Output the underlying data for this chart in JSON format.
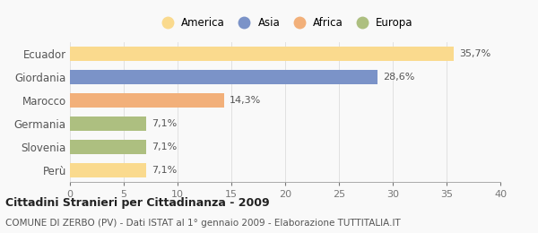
{
  "categories": [
    "Ecuador",
    "Giordania",
    "Marocco",
    "Germania",
    "Slovenia",
    "Perù"
  ],
  "values": [
    35.7,
    28.6,
    14.3,
    7.1,
    7.1,
    7.1
  ],
  "bar_colors": [
    "#FADA8E",
    "#7B93C8",
    "#F2B07A",
    "#ADBF80",
    "#ADBF80",
    "#FADA8E"
  ],
  "bar_labels": [
    "35,7%",
    "28,6%",
    "14,3%",
    "7,1%",
    "7,1%",
    "7,1%"
  ],
  "legend_labels": [
    "America",
    "Asia",
    "Africa",
    "Europa"
  ],
  "legend_colors": [
    "#FADA8E",
    "#7B93C8",
    "#F2B07A",
    "#ADBF80"
  ],
  "title_bold": "Cittadini Stranieri per Cittadinanza - 2009",
  "subtitle": "COMUNE DI ZERBO (PV) - Dati ISTAT al 1° gennaio 2009 - Elaborazione TUTTITALIA.IT",
  "xlim": [
    0,
    40
  ],
  "xticks": [
    0,
    5,
    10,
    15,
    20,
    25,
    30,
    35,
    40
  ],
  "background_color": "#f9f9f9",
  "bar_height": 0.6
}
